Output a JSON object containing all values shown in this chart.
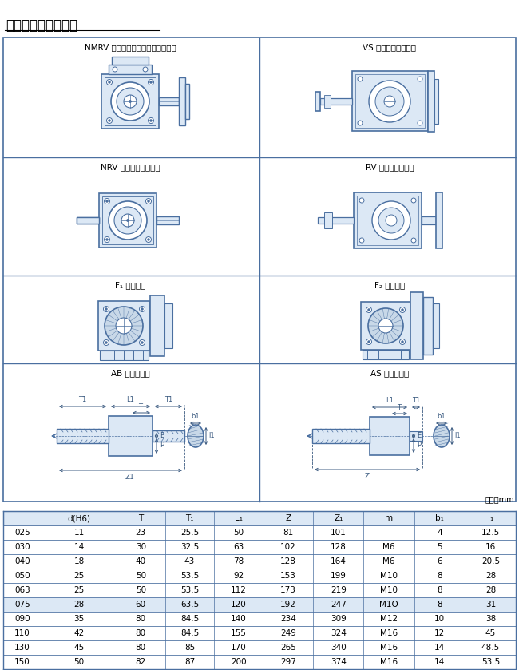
{
  "title": "四、输入输出方式图",
  "title_fontsize": 12,
  "panel_labels": [
    "NMRV 带输入法兰减速机（配电机）",
    "VS 带延伸的法兰输入",
    "NRV 带输入轴式减速机",
    "RV 带延伸的轴输入",
    "F₁ 输出法兰",
    "F₂ 输出法兰",
    "AB 双向输出轴",
    "AS 单向输出轴"
  ],
  "unit_label": "单位：mm",
  "table_headers": [
    "",
    "d(H6)",
    "T",
    "T₁",
    "L₁",
    "Z",
    "Z₁",
    "m",
    "b₁",
    "l₁"
  ],
  "table_data": [
    [
      "025",
      "11",
      "23",
      "25.5",
      "50",
      "81",
      "101",
      "–",
      "4",
      "12.5"
    ],
    [
      "030",
      "14",
      "30",
      "32.5",
      "63",
      "102",
      "128",
      "M6",
      "5",
      "16"
    ],
    [
      "040",
      "18",
      "40",
      "43",
      "78",
      "128",
      "164",
      "M6",
      "6",
      "20.5"
    ],
    [
      "050",
      "25",
      "50",
      "53.5",
      "92",
      "153",
      "199",
      "M10",
      "8",
      "28"
    ],
    [
      "063",
      "25",
      "50",
      "53.5",
      "112",
      "173",
      "219",
      "M10",
      "8",
      "28"
    ],
    [
      "075",
      "28",
      "60",
      "63.5",
      "120",
      "192",
      "247",
      "M1O",
      "8",
      "31"
    ],
    [
      "090",
      "35",
      "80",
      "84.5",
      "140",
      "234",
      "309",
      "M12",
      "10",
      "38"
    ],
    [
      "110",
      "42",
      "80",
      "84.5",
      "155",
      "249",
      "324",
      "M16",
      "12",
      "45"
    ],
    [
      "130",
      "45",
      "80",
      "85",
      "170",
      "265",
      "340",
      "M16",
      "14",
      "48.5"
    ],
    [
      "150",
      "50",
      "82",
      "87",
      "200",
      "297",
      "374",
      "M16",
      "14",
      "53.5"
    ]
  ],
  "highlight_row": 5,
  "diagram_bg": "#dce8f5",
  "line_color": "#4a6fa0",
  "dim_color": "#3a5a80",
  "cell_bg": "#dce8f5",
  "border_color": "#4a6fa0"
}
